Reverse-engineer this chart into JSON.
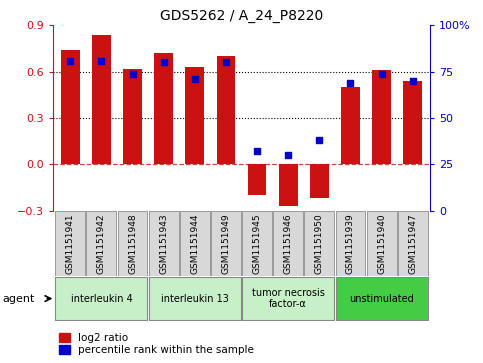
{
  "title": "GDS5262 / A_24_P8220",
  "samples": [
    "GSM1151941",
    "GSM1151942",
    "GSM1151948",
    "GSM1151943",
    "GSM1151944",
    "GSM1151949",
    "GSM1151945",
    "GSM1151946",
    "GSM1151950",
    "GSM1151939",
    "GSM1151940",
    "GSM1151947"
  ],
  "log2_ratio": [
    0.74,
    0.84,
    0.62,
    0.72,
    0.63,
    0.7,
    -0.2,
    -0.27,
    -0.22,
    0.5,
    0.61,
    0.54
  ],
  "percentile": [
    81,
    81,
    74,
    80,
    71,
    80,
    32,
    30,
    38,
    69,
    74,
    70
  ],
  "bar_color": "#cc1111",
  "dot_color": "#0000cc",
  "groups": [
    {
      "label": "interleukin 4",
      "start": 0,
      "end": 2,
      "color": "#c8f0c8"
    },
    {
      "label": "interleukin 13",
      "start": 3,
      "end": 5,
      "color": "#c8f0c8"
    },
    {
      "label": "tumor necrosis\nfactor-α",
      "start": 6,
      "end": 8,
      "color": "#c8f0c8"
    },
    {
      "label": "unstimulated",
      "start": 9,
      "end": 11,
      "color": "#44cc44"
    }
  ],
  "ylim_left": [
    -0.3,
    0.9
  ],
  "ylim_right": [
    0,
    100
  ],
  "yticks_left": [
    -0.3,
    0.0,
    0.3,
    0.6,
    0.9
  ],
  "yticks_right": [
    0,
    25,
    50,
    75,
    100
  ],
  "hlines": [
    0.3,
    0.6
  ],
  "zero_line": 0.0,
  "bar_width": 0.6,
  "left_axis_color": "#cc1111",
  "right_axis_color": "#0000cc",
  "legend_log2": "log2 ratio",
  "legend_pct": "percentile rank within the sample",
  "agent_label": "agent",
  "bg_color": "#ffffff",
  "plot_bg": "#ffffff"
}
